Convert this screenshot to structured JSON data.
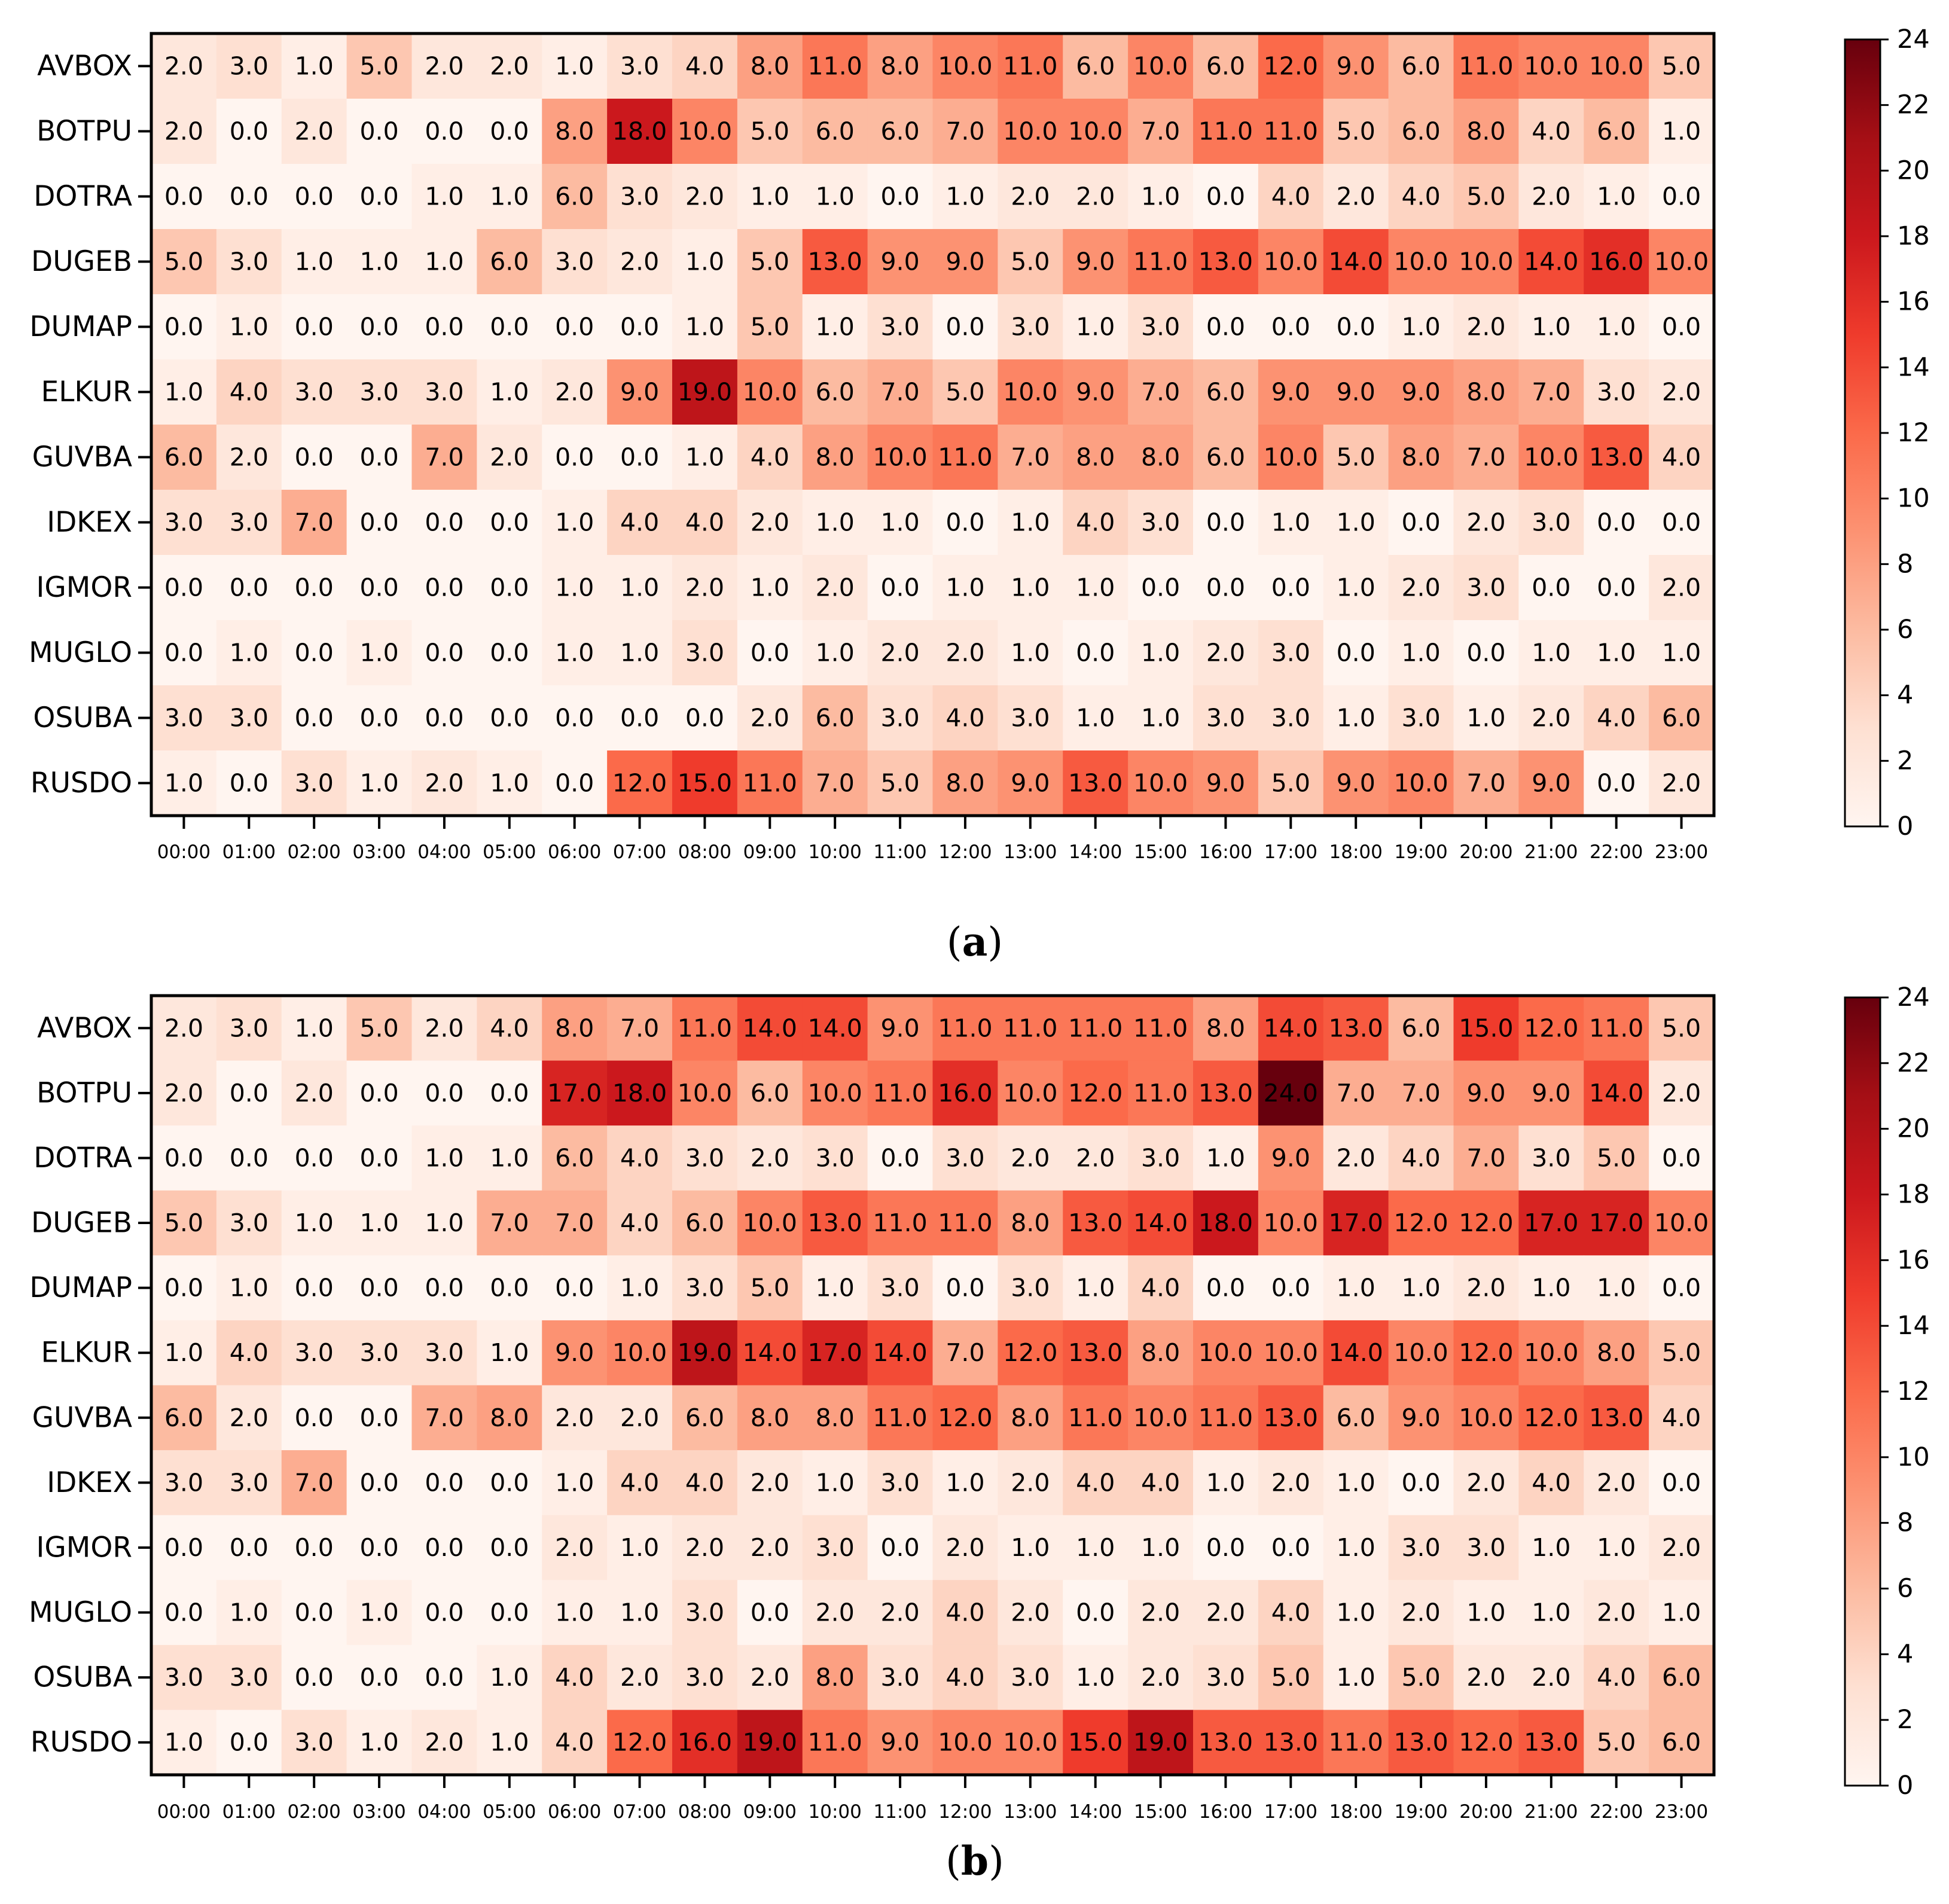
{
  "colors": {
    "scale": [
      "#fff5f0",
      "#fee0d2",
      "#fcbba1",
      "#fc9272",
      "#fb6a4a",
      "#ef3b2c",
      "#cb181d",
      "#a50f15",
      "#67000d"
    ],
    "frame": "#000000",
    "text": "#000000"
  },
  "chart_data": [
    {
      "type": "heatmap",
      "caption_open": "(",
      "caption_letter": "a",
      "caption_close": ")",
      "rows": [
        "AVBOX",
        "BOTPU",
        "DOTRA",
        "DUGEB",
        "DUMAP",
        "ELKUR",
        "GUVBA",
        "IDKEX",
        "IGMOR",
        "MUGLO",
        "OSUBA",
        "RUSDO"
      ],
      "columns": [
        "00:00",
        "01:00",
        "02:00",
        "03:00",
        "04:00",
        "05:00",
        "06:00",
        "07:00",
        "08:00",
        "09:00",
        "10:00",
        "11:00",
        "12:00",
        "13:00",
        "14:00",
        "15:00",
        "16:00",
        "17:00",
        "18:00",
        "19:00",
        "20:00",
        "21:00",
        "22:00",
        "23:00"
      ],
      "values": [
        [
          2,
          3,
          1,
          5,
          2,
          2,
          1,
          3,
          4,
          8,
          11,
          8,
          10,
          11,
          6,
          10,
          6,
          12,
          9,
          6,
          11,
          10,
          10,
          5
        ],
        [
          2,
          0,
          2,
          0,
          0,
          0,
          8,
          18,
          10,
          5,
          6,
          6,
          7,
          10,
          10,
          7,
          11,
          11,
          5,
          6,
          8,
          4,
          6,
          1
        ],
        [
          0,
          0,
          0,
          0,
          1,
          1,
          6,
          3,
          2,
          1,
          1,
          0,
          1,
          2,
          2,
          1,
          0,
          4,
          2,
          4,
          5,
          2,
          1,
          0
        ],
        [
          5,
          3,
          1,
          1,
          1,
          6,
          3,
          2,
          1,
          5,
          13,
          9,
          9,
          5,
          9,
          11,
          13,
          10,
          14,
          10,
          10,
          14,
          16,
          10
        ],
        [
          0,
          1,
          0,
          0,
          0,
          0,
          0,
          0,
          1,
          5,
          1,
          3,
          0,
          3,
          1,
          3,
          0,
          0,
          0,
          1,
          2,
          1,
          1,
          0
        ],
        [
          1,
          4,
          3,
          3,
          3,
          1,
          2,
          9,
          19,
          10,
          6,
          7,
          5,
          10,
          9,
          7,
          6,
          9,
          9,
          9,
          8,
          7,
          3,
          2
        ],
        [
          6,
          2,
          0,
          0,
          7,
          2,
          0,
          0,
          1,
          4,
          8,
          10,
          11,
          7,
          8,
          8,
          6,
          10,
          5,
          8,
          7,
          10,
          13,
          4
        ],
        [
          3,
          3,
          7,
          0,
          0,
          0,
          1,
          4,
          4,
          2,
          1,
          1,
          0,
          1,
          4,
          3,
          0,
          1,
          1,
          0,
          2,
          3,
          0,
          0
        ],
        [
          0,
          0,
          0,
          0,
          0,
          0,
          1,
          1,
          2,
          1,
          2,
          0,
          1,
          1,
          1,
          0,
          0,
          0,
          1,
          2,
          3,
          0,
          0,
          2
        ],
        [
          0,
          1,
          0,
          1,
          0,
          0,
          1,
          1,
          3,
          0,
          1,
          2,
          2,
          1,
          0,
          1,
          2,
          3,
          0,
          1,
          0,
          1,
          1,
          1
        ],
        [
          3,
          3,
          0,
          0,
          0,
          0,
          0,
          0,
          0,
          2,
          6,
          3,
          4,
          3,
          1,
          1,
          3,
          3,
          1,
          3,
          1,
          2,
          4,
          6
        ],
        [
          1,
          0,
          3,
          1,
          2,
          1,
          0,
          12,
          15,
          11,
          7,
          5,
          8,
          9,
          13,
          10,
          9,
          5,
          9,
          10,
          7,
          9,
          0,
          2
        ]
      ],
      "color_range": [
        0,
        24
      ],
      "colorbar_ticks": [
        "0",
        "2",
        "4",
        "6",
        "8",
        "10",
        "12",
        "14",
        "16",
        "18",
        "20",
        "22",
        "24"
      ]
    },
    {
      "type": "heatmap",
      "caption_open": "(",
      "caption_letter": "b",
      "caption_close": ")",
      "rows": [
        "AVBOX",
        "BOTPU",
        "DOTRA",
        "DUGEB",
        "DUMAP",
        "ELKUR",
        "GUVBA",
        "IDKEX",
        "IGMOR",
        "MUGLO",
        "OSUBA",
        "RUSDO"
      ],
      "columns": [
        "00:00",
        "01:00",
        "02:00",
        "03:00",
        "04:00",
        "05:00",
        "06:00",
        "07:00",
        "08:00",
        "09:00",
        "10:00",
        "11:00",
        "12:00",
        "13:00",
        "14:00",
        "15:00",
        "16:00",
        "17:00",
        "18:00",
        "19:00",
        "20:00",
        "21:00",
        "22:00",
        "23:00"
      ],
      "values": [
        [
          2,
          3,
          1,
          5,
          2,
          4,
          8,
          7,
          11,
          14,
          14,
          9,
          11,
          11,
          11,
          11,
          8,
          14,
          13,
          6,
          15,
          12,
          11,
          5
        ],
        [
          2,
          0,
          2,
          0,
          0,
          0,
          17,
          18,
          10,
          6,
          10,
          11,
          16,
          10,
          12,
          11,
          13,
          24,
          7,
          7,
          9,
          9,
          14,
          2
        ],
        [
          0,
          0,
          0,
          0,
          1,
          1,
          6,
          4,
          3,
          2,
          3,
          0,
          3,
          2,
          2,
          3,
          1,
          9,
          2,
          4,
          7,
          3,
          5,
          0
        ],
        [
          5,
          3,
          1,
          1,
          1,
          7,
          7,
          4,
          6,
          10,
          13,
          11,
          11,
          8,
          13,
          14,
          18,
          10,
          17,
          12,
          12,
          17,
          17,
          10
        ],
        [
          0,
          1,
          0,
          0,
          0,
          0,
          0,
          1,
          3,
          5,
          1,
          3,
          0,
          3,
          1,
          4,
          0,
          0,
          1,
          1,
          2,
          1,
          1,
          0
        ],
        [
          1,
          4,
          3,
          3,
          3,
          1,
          9,
          10,
          19,
          14,
          17,
          14,
          7,
          12,
          13,
          8,
          10,
          10,
          14,
          10,
          12,
          10,
          8,
          5
        ],
        [
          6,
          2,
          0,
          0,
          7,
          8,
          2,
          2,
          6,
          8,
          8,
          11,
          12,
          8,
          11,
          10,
          11,
          13,
          6,
          9,
          10,
          12,
          13,
          4
        ],
        [
          3,
          3,
          7,
          0,
          0,
          0,
          1,
          4,
          4,
          2,
          1,
          3,
          1,
          2,
          4,
          4,
          1,
          2,
          1,
          0,
          2,
          4,
          2,
          0
        ],
        [
          0,
          0,
          0,
          0,
          0,
          0,
          2,
          1,
          2,
          2,
          3,
          0,
          2,
          1,
          1,
          1,
          0,
          0,
          1,
          3,
          3,
          1,
          1,
          2
        ],
        [
          0,
          1,
          0,
          1,
          0,
          0,
          1,
          1,
          3,
          0,
          2,
          2,
          4,
          2,
          0,
          2,
          2,
          4,
          1,
          2,
          1,
          1,
          2,
          1
        ],
        [
          3,
          3,
          0,
          0,
          0,
          1,
          4,
          2,
          3,
          2,
          8,
          3,
          4,
          3,
          1,
          2,
          3,
          5,
          1,
          5,
          2,
          2,
          4,
          6
        ],
        [
          1,
          0,
          3,
          1,
          2,
          1,
          4,
          12,
          16,
          19,
          11,
          9,
          10,
          10,
          15,
          19,
          13,
          13,
          11,
          13,
          12,
          13,
          5,
          6
        ]
      ],
      "color_range": [
        0,
        24
      ],
      "colorbar_ticks": [
        "0",
        "2",
        "4",
        "6",
        "8",
        "10",
        "12",
        "14",
        "16",
        "18",
        "20",
        "22",
        "24"
      ]
    }
  ]
}
